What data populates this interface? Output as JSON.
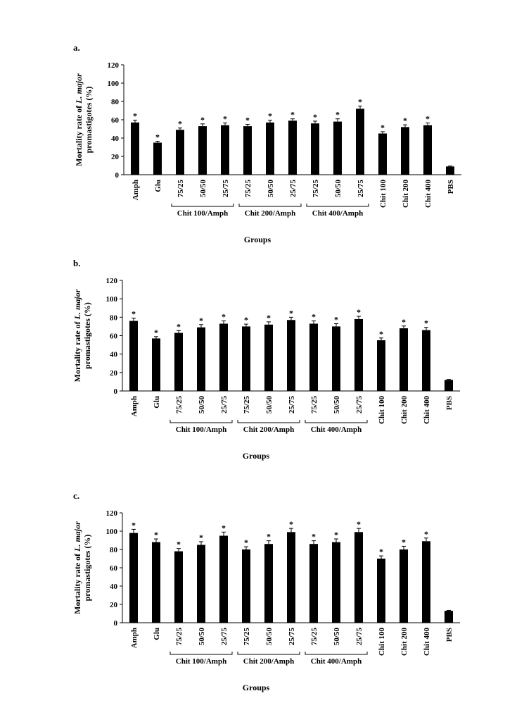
{
  "chart_data": [
    {
      "type": "bar",
      "panel_label": "a.",
      "ylabel": {
        "text": "Mortality rate of",
        "italic": "L. major",
        "line2": "promastigotes (%)"
      },
      "xlabel": "Groups",
      "categories": [
        "Amph",
        "Glu",
        "75/25",
        "50/50",
        "25/75",
        "75/25",
        "50/50",
        "25/75",
        "75/25",
        "50/50",
        "25/75",
        "Chit 100",
        "Chit 200",
        "Chit 400",
        "PBS"
      ],
      "groups": [
        "Chit 100/Amph",
        "Chit 200/Amph",
        "Chit 400/Amph"
      ],
      "values": [
        57,
        35,
        49,
        53,
        54,
        53,
        57,
        59,
        56,
        58,
        72,
        45,
        52,
        54,
        9
      ],
      "errors": [
        2.5,
        1.5,
        2,
        2.5,
        2.5,
        2,
        2.5,
        2,
        2.5,
        3,
        3,
        2,
        2.5,
        2.5,
        0.5
      ],
      "annotations": [
        "*",
        "*",
        "*",
        "*",
        "*",
        "*",
        "*",
        "*",
        "*",
        "*",
        "*",
        "*",
        "*",
        "*",
        null
      ],
      "color": "#000000",
      "ylim": [
        0,
        120
      ],
      "yticks": [
        0,
        20,
        40,
        60,
        80,
        100,
        120
      ]
    },
    {
      "type": "bar",
      "panel_label": "b.",
      "ylabel": {
        "text": "Mortality rate of",
        "italic": "L. major",
        "line2": "promastigotes (%)"
      },
      "xlabel": "Groups",
      "categories": [
        "Amph",
        "Glu",
        "75/25",
        "50/50",
        "25/75",
        "75/25",
        "50/50",
        "25/75",
        "75/25",
        "50/50",
        "25/75",
        "Chit 100",
        "Chit 200",
        "Chit 400",
        "PBS"
      ],
      "groups": [
        "Chit 100/Amph",
        "Chit 200/Amph",
        "Chit 400/Amph"
      ],
      "values": [
        76,
        57,
        63,
        69,
        73,
        70,
        72,
        77,
        73,
        70,
        78,
        55,
        68,
        66,
        12
      ],
      "errors": [
        3,
        2,
        2.5,
        3,
        3,
        2.5,
        3,
        3,
        3,
        3,
        3,
        2.5,
        2.5,
        3,
        0.5
      ],
      "annotations": [
        "*",
        "*",
        "*",
        "*",
        "*",
        "*",
        "*",
        "*",
        "*",
        "*",
        "*",
        "*",
        "*",
        "*",
        null
      ],
      "color": "#000000",
      "ylim": [
        0,
        120
      ],
      "yticks": [
        0,
        20,
        40,
        60,
        80,
        100,
        120
      ]
    },
    {
      "type": "bar",
      "panel_label": "c.",
      "ylabel": {
        "text": "Mortality rate of",
        "italic": "L. major",
        "line2": "promastigotes (%)"
      },
      "xlabel": "Groups",
      "categories": [
        "Amph",
        "Glu",
        "75/25",
        "50/50",
        "25/75",
        "75/25",
        "50/50",
        "25/75",
        "75/25",
        "50/50",
        "25/75",
        "Chit 100",
        "Chit 200",
        "Chit 400",
        "PBS"
      ],
      "groups": [
        "Chit 100/Amph",
        "Chit 200/Amph",
        "Chit 400/Amph"
      ],
      "values": [
        98,
        88,
        78,
        85,
        95,
        80,
        86,
        99,
        86,
        88,
        99,
        70,
        80,
        89,
        13
      ],
      "errors": [
        4,
        3.5,
        3,
        3.5,
        4,
        3,
        3.5,
        4,
        3.5,
        3.5,
        4,
        3,
        3.5,
        3.5,
        0.5
      ],
      "annotations": [
        "*",
        "*",
        "*",
        "*",
        "*",
        "*",
        "*",
        "*",
        "*",
        "*",
        "*",
        "*",
        "*",
        "*",
        null
      ],
      "color": "#000000",
      "ylim": [
        0,
        120
      ],
      "yticks": [
        0,
        20,
        40,
        60,
        80,
        100,
        120
      ]
    }
  ]
}
